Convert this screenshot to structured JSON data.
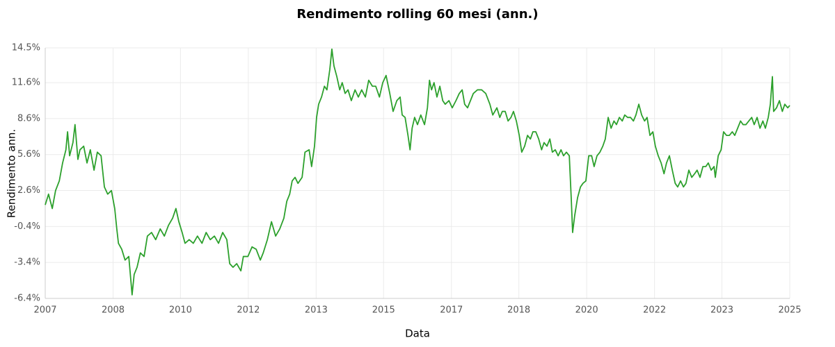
{
  "chart_data": {
    "type": "line",
    "title": "Rendimento rolling 60 mesi (ann.)",
    "x_label": "Data",
    "y_label": "Rendimento ann.",
    "color": "#2ca02c",
    "grid": true,
    "xlim": [
      2007,
      2025
    ],
    "xticks": [
      {
        "value": 2007,
        "label": "2007"
      },
      {
        "value": 2008.64,
        "label": "2008"
      },
      {
        "value": 2010.27,
        "label": "2010"
      },
      {
        "value": 2011.91,
        "label": "2012"
      },
      {
        "value": 2013.55,
        "label": "2013"
      },
      {
        "value": 2015.18,
        "label": "2015"
      },
      {
        "value": 2016.82,
        "label": "2017"
      },
      {
        "value": 2018.45,
        "label": "2018"
      },
      {
        "value": 2020.09,
        "label": "2020"
      },
      {
        "value": 2021.73,
        "label": "2022"
      },
      {
        "value": 2023.36,
        "label": "2023"
      },
      {
        "value": 2025,
        "label": "2025"
      }
    ],
    "ylim": [
      -6.4,
      14.5
    ],
    "yticks": [
      {
        "value": -6.4,
        "label": "-6.4%"
      },
      {
        "value": -3.4,
        "label": "-3.4%"
      },
      {
        "value": -0.4,
        "label": "-0.4%"
      },
      {
        "value": 2.6,
        "label": "2.6%"
      },
      {
        "value": 5.6,
        "label": "5.6%"
      },
      {
        "value": 8.6,
        "label": "8.6%"
      },
      {
        "value": 11.6,
        "label": "11.6%"
      },
      {
        "value": 14.5,
        "label": "14.5%"
      }
    ],
    "x": [
      2007.0,
      2007.08,
      2007.17,
      2007.25,
      2007.34,
      2007.42,
      2007.5,
      2007.54,
      2007.59,
      2007.67,
      2007.72,
      2007.79,
      2007.84,
      2007.93,
      2008.01,
      2008.09,
      2008.18,
      2008.26,
      2008.35,
      2008.43,
      2008.51,
      2008.6,
      2008.68,
      2008.73,
      2008.77,
      2008.85,
      2008.93,
      2009.02,
      2009.07,
      2009.1,
      2009.15,
      2009.22,
      2009.3,
      2009.39,
      2009.47,
      2009.57,
      2009.67,
      2009.78,
      2009.88,
      2009.98,
      2010.08,
      2010.16,
      2010.23,
      2010.31,
      2010.38,
      2010.48,
      2010.58,
      2010.68,
      2010.79,
      2010.89,
      2010.99,
      2011.09,
      2011.19,
      2011.29,
      2011.39,
      2011.46,
      2011.54,
      2011.63,
      2011.73,
      2011.79,
      2011.9,
      2012.0,
      2012.1,
      2012.2,
      2012.27,
      2012.37,
      2012.47,
      2012.57,
      2012.67,
      2012.77,
      2012.84,
      2012.91,
      2012.97,
      2013.04,
      2013.11,
      2013.21,
      2013.28,
      2013.38,
      2013.44,
      2013.51,
      2013.56,
      2013.61,
      2013.68,
      2013.75,
      2013.81,
      2013.88,
      2013.93,
      2013.98,
      2014.05,
      2014.12,
      2014.18,
      2014.25,
      2014.32,
      2014.4,
      2014.49,
      2014.57,
      2014.65,
      2014.74,
      2014.82,
      2014.91,
      2014.99,
      2015.08,
      2015.16,
      2015.24,
      2015.33,
      2015.41,
      2015.5,
      2015.58,
      2015.63,
      2015.7,
      2015.77,
      2015.82,
      2015.87,
      2015.93,
      2016.0,
      2016.08,
      2016.17,
      2016.24,
      2016.29,
      2016.34,
      2016.4,
      2016.47,
      2016.54,
      2016.61,
      2016.67,
      2016.76,
      2016.84,
      2016.93,
      2017.01,
      2017.08,
      2017.14,
      2017.21,
      2017.28,
      2017.35,
      2017.45,
      2017.55,
      2017.65,
      2017.75,
      2017.82,
      2017.92,
      2017.99,
      2018.05,
      2018.12,
      2018.19,
      2018.26,
      2018.32,
      2018.39,
      2018.46,
      2018.52,
      2018.59,
      2018.66,
      2018.73,
      2018.79,
      2018.86,
      2018.93,
      2019.0,
      2019.06,
      2019.13,
      2019.2,
      2019.26,
      2019.33,
      2019.4,
      2019.47,
      2019.53,
      2019.6,
      2019.67,
      2019.72,
      2019.75,
      2019.8,
      2019.87,
      2019.94,
      2020.0,
      2020.07,
      2020.14,
      2020.21,
      2020.27,
      2020.34,
      2020.41,
      2020.48,
      2020.54,
      2020.61,
      2020.68,
      2020.75,
      2020.81,
      2020.88,
      2020.95,
      2021.01,
      2021.08,
      2021.15,
      2021.22,
      2021.28,
      2021.35,
      2021.42,
      2021.49,
      2021.55,
      2021.62,
      2021.69,
      2021.75,
      2021.82,
      2021.89,
      2021.96,
      2022.02,
      2022.09,
      2022.16,
      2022.23,
      2022.29,
      2022.36,
      2022.43,
      2022.49,
      2022.56,
      2022.63,
      2022.7,
      2022.76,
      2022.83,
      2022.9,
      2022.97,
      2023.03,
      2023.1,
      2023.17,
      2023.2,
      2023.27,
      2023.34,
      2023.4,
      2023.47,
      2023.54,
      2023.61,
      2023.67,
      2023.74,
      2023.81,
      2023.87,
      2023.94,
      2024.01,
      2024.08,
      2024.14,
      2024.21,
      2024.28,
      2024.35,
      2024.41,
      2024.48,
      2024.53,
      2024.58,
      2024.61,
      2024.68,
      2024.75,
      2024.82,
      2024.88,
      2024.95,
      2025.0
    ],
    "values": [
      1.4,
      2.3,
      1.1,
      2.6,
      3.4,
      4.9,
      6.0,
      7.5,
      5.5,
      6.6,
      8.1,
      5.2,
      6.0,
      6.3,
      4.9,
      6.0,
      4.3,
      5.8,
      5.5,
      2.9,
      2.3,
      2.6,
      1.1,
      -0.6,
      -1.8,
      -2.3,
      -3.2,
      -2.9,
      -4.9,
      -6.1,
      -4.4,
      -3.8,
      -2.6,
      -2.9,
      -1.2,
      -0.9,
      -1.5,
      -0.6,
      -1.2,
      -0.3,
      0.3,
      1.1,
      0.0,
      -0.9,
      -1.8,
      -1.5,
      -1.8,
      -1.2,
      -1.8,
      -0.9,
      -1.5,
      -1.2,
      -1.8,
      -0.9,
      -1.5,
      -3.5,
      -3.8,
      -3.5,
      -4.1,
      -2.9,
      -2.9,
      -2.1,
      -2.3,
      -3.2,
      -2.6,
      -1.5,
      0.0,
      -1.2,
      -0.6,
      0.3,
      1.7,
      2.3,
      3.4,
      3.7,
      3.2,
      3.7,
      5.8,
      6.0,
      4.6,
      6.3,
      8.7,
      9.8,
      10.4,
      11.3,
      11.0,
      12.7,
      14.4,
      13.0,
      12.1,
      11.0,
      11.6,
      10.7,
      11.0,
      10.1,
      11.0,
      10.4,
      11.0,
      10.4,
      11.8,
      11.3,
      11.3,
      10.4,
      11.6,
      12.2,
      10.7,
      9.2,
      10.1,
      10.4,
      8.9,
      8.7,
      7.2,
      6.0,
      7.8,
      8.7,
      8.1,
      8.9,
      8.1,
      9.5,
      11.8,
      11.0,
      11.6,
      10.4,
      11.3,
      10.1,
      9.8,
      10.1,
      9.5,
      10.1,
      10.7,
      11.0,
      9.8,
      9.5,
      10.1,
      10.7,
      11.0,
      11.0,
      10.7,
      9.8,
      8.9,
      9.5,
      8.7,
      9.2,
      9.2,
      8.4,
      8.7,
      9.2,
      8.4,
      7.2,
      5.8,
      6.3,
      7.2,
      6.9,
      7.5,
      7.5,
      6.9,
      6.0,
      6.6,
      6.3,
      6.9,
      5.8,
      6.0,
      5.5,
      6.0,
      5.5,
      5.8,
      5.5,
      1.7,
      -0.9,
      0.5,
      2.0,
      2.9,
      3.2,
      3.4,
      5.5,
      5.5,
      4.6,
      5.5,
      5.8,
      6.3,
      6.9,
      8.7,
      7.8,
      8.4,
      8.1,
      8.7,
      8.4,
      8.9,
      8.7,
      8.7,
      8.4,
      8.9,
      9.8,
      8.9,
      8.4,
      8.7,
      7.2,
      7.5,
      6.3,
      5.5,
      4.9,
      4.0,
      4.9,
      5.5,
      4.3,
      3.2,
      2.9,
      3.4,
      2.9,
      3.2,
      4.3,
      3.7,
      4.0,
      4.3,
      3.7,
      4.6,
      4.6,
      4.9,
      4.3,
      4.6,
      3.7,
      5.5,
      6.0,
      7.5,
      7.2,
      7.2,
      7.5,
      7.2,
      7.8,
      8.4,
      8.1,
      8.1,
      8.4,
      8.7,
      8.1,
      8.7,
      7.8,
      8.4,
      7.8,
      8.7,
      9.8,
      12.1,
      9.2,
      9.5,
      10.1,
      9.2,
      9.8,
      9.5,
      9.7
    ]
  }
}
